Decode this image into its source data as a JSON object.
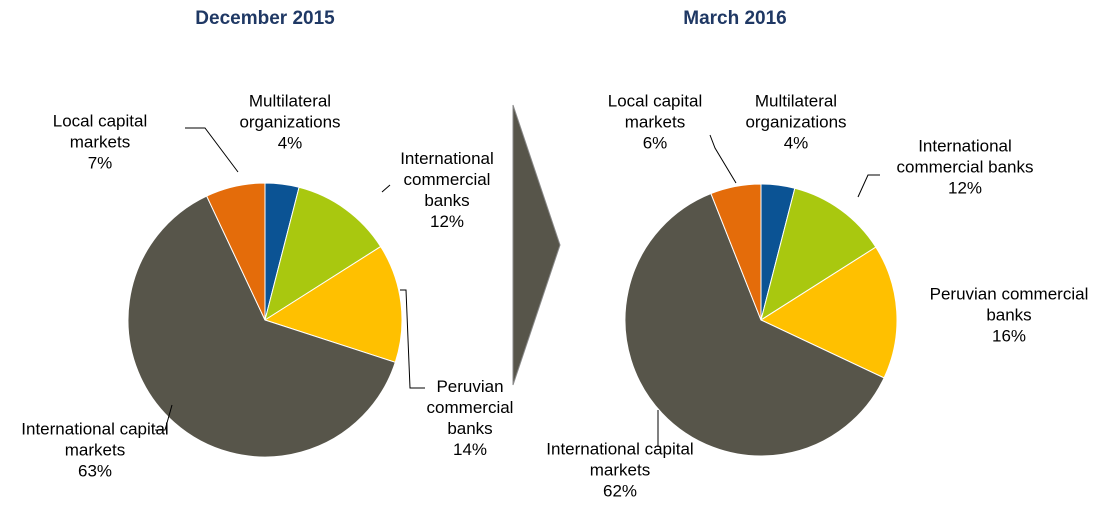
{
  "chart_data": [
    {
      "type": "pie",
      "title": "December 2015",
      "categories": [
        "Multilateral organizations",
        "International commercial banks",
        "Peruvian commercial banks",
        "International capital markets",
        "Local capital markets"
      ],
      "values": [
        4,
        12,
        14,
        63,
        7
      ],
      "value_labels": [
        "4%",
        "12%",
        "14%",
        "63%",
        "7%"
      ],
      "colors": [
        "#0b5394",
        "#a9c80f",
        "#ffc000",
        "#57554a",
        "#e46c0a"
      ]
    },
    {
      "type": "pie",
      "title": "March 2016",
      "categories": [
        "Multilateral organizations",
        "International commercial banks",
        "Peruvian commercial banks",
        "International capital markets",
        "Local capital markets"
      ],
      "values": [
        4,
        12,
        16,
        62,
        6
      ],
      "value_labels": [
        "4%",
        "12%",
        "16%",
        "62%",
        "6%"
      ],
      "colors": [
        "#0b5394",
        "#a9c80f",
        "#ffc000",
        "#57554a",
        "#e46c0a"
      ]
    }
  ]
}
